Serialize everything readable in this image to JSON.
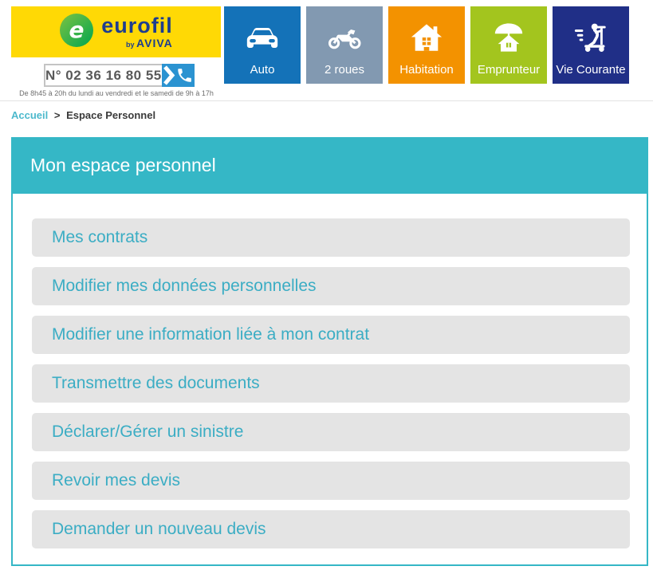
{
  "header": {
    "logo": {
      "letter": "e",
      "brand": "eurofil",
      "by": "by",
      "parent_brand": "AVIVA"
    },
    "phone": {
      "number": "N° 02 36 16 80 55"
    },
    "hours": "De 8h45 à 20h du lundi au vendredi et le samedi de 9h à 17h",
    "tabs": [
      {
        "label": "Auto",
        "icon": "car-icon",
        "color": "#1472B8"
      },
      {
        "label": "2 roues",
        "icon": "motorcycle-icon",
        "color": "#8299B1"
      },
      {
        "label": "Habitation",
        "icon": "house-icon",
        "color": "#F39200"
      },
      {
        "label": "Emprunteur",
        "icon": "umbrella-house-icon",
        "color": "#A3C51E"
      },
      {
        "label": "Vie Courante",
        "icon": "scooter-icon",
        "color": "#202F87"
      }
    ]
  },
  "breadcrumb": {
    "home": "Accueil",
    "separator": ">",
    "current": "Espace Personnel"
  },
  "panel": {
    "title": "Mon espace personnel",
    "items": [
      {
        "label": "Mes contrats"
      },
      {
        "label": "Modifier mes données personnelles"
      },
      {
        "label": "Modifier une information liée à mon contrat"
      },
      {
        "label": "Transmettre des documents"
      },
      {
        "label": "Déclarer/Gérer un sinistre"
      },
      {
        "label": "Revoir mes devis"
      },
      {
        "label": "Demander un nouveau devis"
      }
    ]
  },
  "colors": {
    "brand_yellow": "#FFD905",
    "brand_blue": "#1D3D8F",
    "teal": "#35B7C6",
    "item_text": "#3BADC4",
    "item_bg": "#E4E4E4",
    "phone_button_blue": "#2B93D1"
  }
}
